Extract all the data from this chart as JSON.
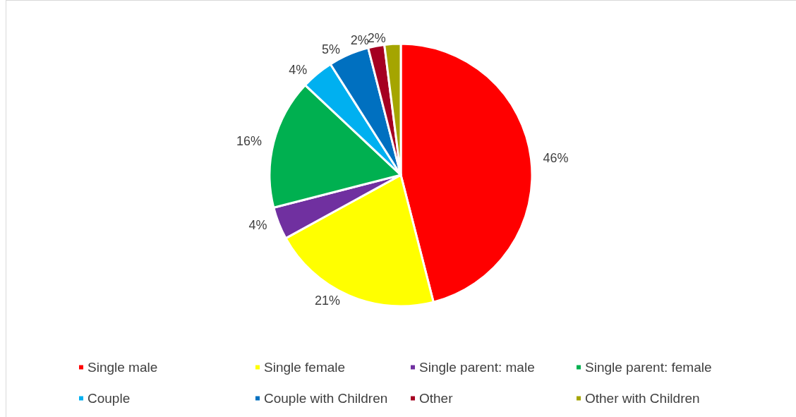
{
  "chart_data": {
    "type": "pie",
    "categories": [
      "Single male",
      "Single female",
      "Single parent: male",
      "Single parent: female",
      "Couple",
      "Couple with Children",
      "Other",
      "Other with Children"
    ],
    "values": [
      46,
      21,
      4,
      16,
      4,
      5,
      2,
      2
    ],
    "value_labels": [
      "46%",
      "21%",
      "4%",
      "16%",
      "4%",
      "5%",
      "2%",
      "2%"
    ],
    "colors": [
      "#ff0000",
      "#ffff00",
      "#7030a0",
      "#00b050",
      "#00b0f0",
      "#0070c0",
      "#a50021",
      "#a5a500"
    ],
    "legend": "bottom"
  }
}
